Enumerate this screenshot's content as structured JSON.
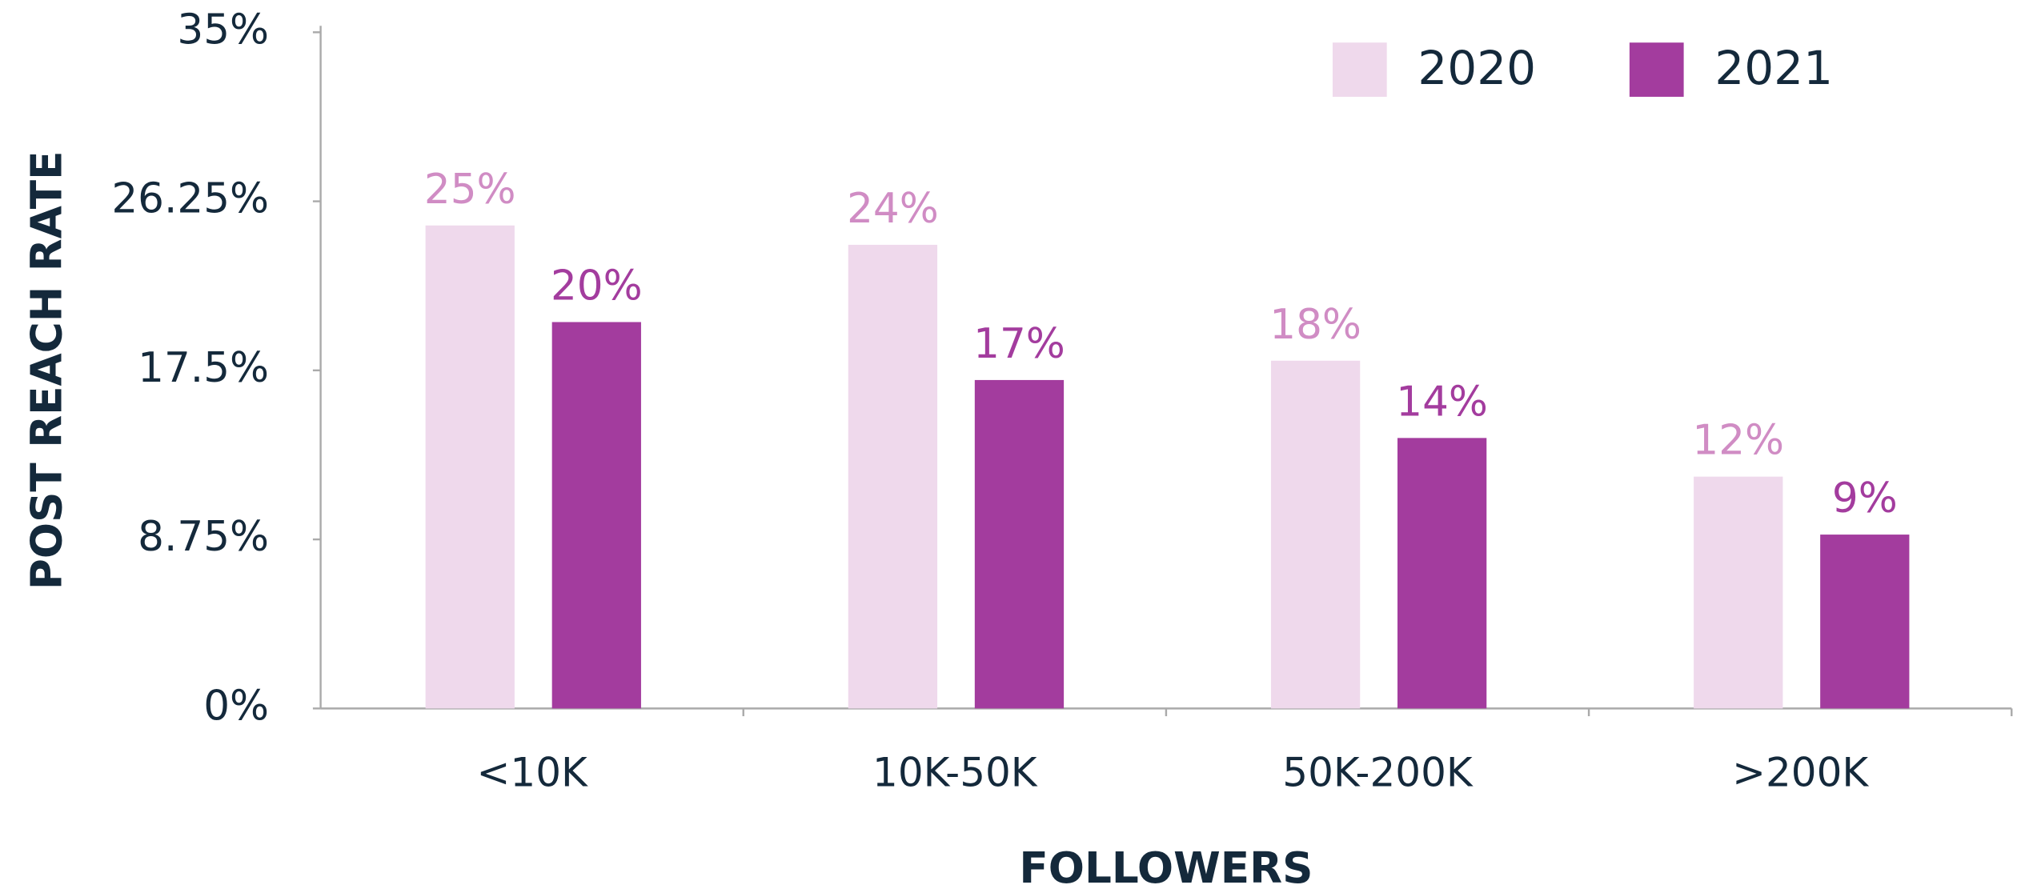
{
  "chart_data": {
    "type": "bar",
    "x_label": "FOLLOWERS",
    "y_label": "POST REACH RATE",
    "categories": [
      "<10K",
      "10K-50K",
      "50K-200K",
      ">200K"
    ],
    "series": [
      {
        "name": "2020",
        "color": "#efd9ec",
        "label_color": "#d08cc4",
        "values": [
          25,
          24,
          18,
          12
        ],
        "value_labels": [
          "25%",
          "24%",
          "18%",
          "12%"
        ]
      },
      {
        "name": "2021",
        "color": "#a33c9e",
        "label_color": "#a33c9e",
        "values": [
          20,
          17,
          14,
          9
        ],
        "value_labels": [
          "20%",
          "17%",
          "14%",
          "9%"
        ]
      }
    ],
    "ylim": [
      0,
      35
    ],
    "yticks": [
      {
        "value": 0,
        "label": "0%"
      },
      {
        "value": 8.75,
        "label": "8.75%"
      },
      {
        "value": 17.5,
        "label": "17.5%"
      },
      {
        "value": 26.25,
        "label": "26.25%"
      },
      {
        "value": 35,
        "label": "35%"
      }
    ],
    "legend": "top-right"
  }
}
